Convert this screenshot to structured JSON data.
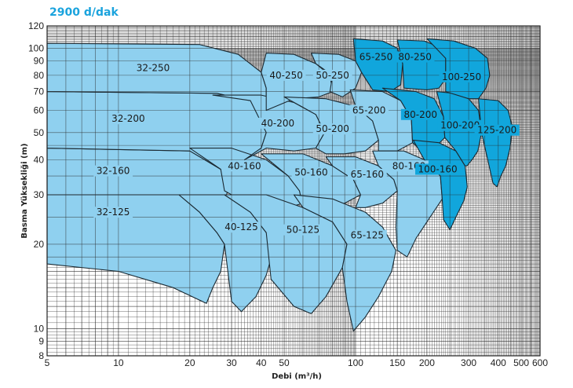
{
  "chart_data": {
    "type": "area",
    "title": "2900 d/dak",
    "xlabel": "Debi (m³/h)",
    "ylabel": "Basma Yüksekliği (m)",
    "x_scale": "log",
    "y_scale": "log",
    "xlim": [
      5,
      600
    ],
    "ylim": [
      8,
      120
    ],
    "x_ticks": [
      5,
      10,
      20,
      30,
      40,
      50,
      100,
      150,
      200,
      300,
      400,
      500,
      600
    ],
    "x_tick_labels": [
      "5",
      "10",
      "20",
      "30",
      "40",
      "50",
      "100",
      "150",
      "200",
      "300",
      "400",
      "500",
      "600"
    ],
    "y_ticks": [
      8,
      9,
      10,
      20,
      30,
      40,
      50,
      60,
      70,
      80,
      90,
      100,
      120
    ],
    "y_tick_labels": [
      "8",
      "9",
      "10",
      "20",
      "30",
      "40",
      "50",
      "60",
      "70",
      "80",
      "90",
      "100",
      "120"
    ],
    "grid": true,
    "colors": {
      "light_region": "#8fd0ef",
      "dark_region": "#11a6dc",
      "outline": "#1b2a33",
      "title": "#1aa3dd",
      "grid": "#2a2a2a"
    },
    "regions": [
      {
        "label": "32-125",
        "shade": "light",
        "label_at": [
          9.5,
          26
        ],
        "outline": [
          [
            5,
            30
          ],
          [
            18,
            30
          ],
          [
            22,
            26
          ],
          [
            26,
            22
          ],
          [
            28,
            20
          ],
          [
            27,
            16
          ],
          [
            25,
            14
          ],
          [
            23.5,
            12.3
          ],
          [
            17,
            14
          ],
          [
            10,
            16
          ],
          [
            5,
            17
          ]
        ]
      },
      {
        "label": "32-160",
        "shade": "light",
        "label_at": [
          9.5,
          36.5
        ],
        "outline": [
          [
            5,
            44
          ],
          [
            20,
            43
          ],
          [
            27,
            37
          ],
          [
            29,
            31
          ],
          [
            28,
            29
          ],
          [
            18,
            30
          ],
          [
            5,
            30
          ]
        ]
      },
      {
        "label": "32-200",
        "shade": "light",
        "label_at": [
          11,
          56
        ],
        "outline": [
          [
            5,
            70
          ],
          [
            26,
            69
          ],
          [
            36,
            65
          ],
          [
            42,
            59
          ],
          [
            42,
            50
          ],
          [
            40,
            44
          ],
          [
            34,
            40
          ],
          [
            27,
            37
          ],
          [
            20,
            43
          ],
          [
            5,
            44
          ]
        ]
      },
      {
        "label": "32-250",
        "shade": "light",
        "label_at": [
          14,
          85
        ],
        "outline": [
          [
            5,
            104
          ],
          [
            22,
            103
          ],
          [
            32,
            95
          ],
          [
            40,
            82
          ],
          [
            42,
            72
          ],
          [
            42,
            59
          ],
          [
            36,
            65
          ],
          [
            26,
            69
          ],
          [
            5,
            70
          ]
        ]
      },
      {
        "label": "40-125",
        "shade": "light",
        "label_at": [
          33,
          23
        ],
        "outline": [
          [
            15,
            30
          ],
          [
            28,
            30
          ],
          [
            36,
            26
          ],
          [
            42,
            22
          ],
          [
            45,
            19
          ],
          [
            42,
            15.5
          ],
          [
            38,
            13
          ],
          [
            33,
            11.5
          ],
          [
            30,
            12.5
          ],
          [
            28,
            20
          ],
          [
            26,
            22
          ],
          [
            22,
            26
          ],
          [
            18,
            30
          ]
        ]
      },
      {
        "label": "40-160",
        "shade": "light",
        "label_at": [
          34,
          38
        ],
        "outline": [
          [
            20,
            44
          ],
          [
            30,
            44
          ],
          [
            42,
            40
          ],
          [
            52,
            35
          ],
          [
            58,
            31
          ],
          [
            60,
            28
          ],
          [
            52,
            27
          ],
          [
            42,
            27
          ],
          [
            30,
            30
          ],
          [
            28,
            31
          ],
          [
            27,
            37
          ]
        ]
      },
      {
        "label": "40-200",
        "shade": "light",
        "label_at": [
          47,
          54
        ],
        "outline": [
          [
            25,
            68
          ],
          [
            40,
            68
          ],
          [
            55,
            64
          ],
          [
            68,
            58
          ],
          [
            74,
            50
          ],
          [
            68,
            44
          ],
          [
            55,
            43
          ],
          [
            42,
            44
          ],
          [
            34,
            40
          ],
          [
            40,
            44
          ],
          [
            42,
            50
          ],
          [
            36,
            65
          ]
        ]
      },
      {
        "label": "40-250",
        "shade": "light",
        "label_at": [
          51,
          80
        ],
        "outline": [
          [
            42,
            96
          ],
          [
            55,
            95
          ],
          [
            68,
            88
          ],
          [
            78,
            80
          ],
          [
            80,
            70
          ],
          [
            70,
            67
          ],
          [
            55,
            66
          ],
          [
            42,
            60
          ],
          [
            42,
            72
          ],
          [
            40,
            82
          ]
        ]
      },
      {
        "label": "50-125",
        "shade": "light",
        "label_at": [
          60,
          22.5
        ],
        "outline": [
          [
            30,
            30
          ],
          [
            42,
            30
          ],
          [
            60,
            27
          ],
          [
            80,
            24
          ],
          [
            92,
            20
          ],
          [
            88,
            16.5
          ],
          [
            75,
            13
          ],
          [
            65,
            11.3
          ],
          [
            55,
            12
          ],
          [
            44,
            15
          ],
          [
            42,
            22
          ],
          [
            36,
            26
          ],
          [
            28,
            30
          ]
        ]
      },
      {
        "label": "50-160",
        "shade": "light",
        "label_at": [
          65,
          36
        ],
        "outline": [
          [
            40,
            42
          ],
          [
            60,
            42
          ],
          [
            80,
            38
          ],
          [
            98,
            34
          ],
          [
            105,
            30
          ],
          [
            90,
            28
          ],
          [
            75,
            27
          ],
          [
            60,
            27
          ],
          [
            58,
            31
          ],
          [
            52,
            35
          ]
        ]
      },
      {
        "label": "50-200",
        "shade": "light",
        "label_at": [
          80,
          51.5
        ],
        "outline": [
          [
            50,
            67
          ],
          [
            75,
            66
          ],
          [
            100,
            62
          ],
          [
            118,
            55
          ],
          [
            125,
            47
          ],
          [
            110,
            43
          ],
          [
            90,
            42
          ],
          [
            75,
            42
          ],
          [
            68,
            44
          ],
          [
            74,
            50
          ],
          [
            68,
            58
          ]
        ]
      },
      {
        "label": "50-250",
        "shade": "light",
        "label_at": [
          80,
          80
        ],
        "outline": [
          [
            65,
            96
          ],
          [
            85,
            95
          ],
          [
            100,
            90
          ],
          [
            106,
            82
          ],
          [
            100,
            72
          ],
          [
            88,
            67
          ],
          [
            78,
            70
          ],
          [
            80,
            80
          ],
          [
            68,
            88
          ]
        ]
      },
      {
        "label": "65-125",
        "shade": "light",
        "label_at": [
          112,
          21.5
        ],
        "outline": [
          [
            55,
            30
          ],
          [
            80,
            29
          ],
          [
            110,
            26
          ],
          [
            130,
            23
          ],
          [
            148,
            19
          ],
          [
            142,
            16
          ],
          [
            125,
            13
          ],
          [
            110,
            11
          ],
          [
            98,
            9.8
          ],
          [
            92,
            12.5
          ],
          [
            88,
            16.5
          ],
          [
            92,
            20
          ],
          [
            80,
            24
          ],
          [
            60,
            27
          ]
        ]
      },
      {
        "label": "65-160",
        "shade": "light",
        "label_at": [
          112,
          35.5
        ],
        "outline": [
          [
            75,
            41
          ],
          [
            100,
            41
          ],
          [
            125,
            38
          ],
          [
            145,
            34
          ],
          [
            150,
            31
          ],
          [
            130,
            28
          ],
          [
            110,
            27
          ],
          [
            100,
            27
          ],
          [
            105,
            30
          ],
          [
            98,
            34
          ],
          [
            80,
            38
          ]
        ]
      },
      {
        "label": "65-200",
        "shade": "light",
        "label_at": [
          114,
          60
        ],
        "outline": [
          [
            95,
            71
          ],
          [
            130,
            70
          ],
          [
            155,
            65
          ],
          [
            172,
            56
          ],
          [
            174,
            46
          ],
          [
            150,
            43
          ],
          [
            125,
            43
          ],
          [
            125,
            47
          ],
          [
            118,
            55
          ],
          [
            100,
            62
          ]
        ]
      },
      {
        "label": "65-250",
        "shade": "dark",
        "label_at": [
          122,
          93
        ],
        "outline": [
          [
            98,
            108
          ],
          [
            130,
            106
          ],
          [
            150,
            100
          ],
          [
            158,
            88
          ],
          [
            155,
            74
          ],
          [
            140,
            70
          ],
          [
            118,
            71
          ],
          [
            106,
            82
          ],
          [
            100,
            90
          ]
        ]
      },
      {
        "label": "80-160",
        "shade": "light",
        "label_at": [
          168,
          38
        ],
        "outline": [
          [
            118,
            43
          ],
          [
            160,
            43
          ],
          [
            195,
            40
          ],
          [
            228,
            35
          ],
          [
            232,
            29
          ],
          [
            200,
            24
          ],
          [
            180,
            21
          ],
          [
            165,
            18
          ],
          [
            150,
            19
          ],
          [
            148,
            23
          ],
          [
            150,
            31
          ],
          [
            145,
            34
          ],
          [
            125,
            38
          ]
        ]
      },
      {
        "label": "80-200",
        "shade": "dark",
        "label_at": [
          188,
          58
        ],
        "outline": [
          [
            130,
            72
          ],
          [
            180,
            70
          ],
          [
            215,
            66
          ],
          [
            235,
            57
          ],
          [
            238,
            48
          ],
          [
            215,
            44
          ],
          [
            190,
            43
          ],
          [
            174,
            46
          ],
          [
            172,
            56
          ],
          [
            155,
            65
          ]
        ]
      },
      {
        "label": "80-250",
        "shade": "dark",
        "label_at": [
          178,
          93
        ],
        "outline": [
          [
            150,
            107
          ],
          [
            195,
            106
          ],
          [
            225,
            101
          ],
          [
            240,
            92
          ],
          [
            240,
            78
          ],
          [
            225,
            72
          ],
          [
            200,
            71
          ],
          [
            160,
            72
          ],
          [
            158,
            88
          ]
        ]
      },
      {
        "label": "100-160",
        "shade": "dark",
        "label_at": [
          222,
          37
        ],
        "outline": [
          [
            175,
            47
          ],
          [
            225,
            46
          ],
          [
            265,
            43
          ],
          [
            290,
            38
          ],
          [
            296,
            32
          ],
          [
            286,
            28.5
          ],
          [
            268,
            25.5
          ],
          [
            250,
            22.5
          ],
          [
            235,
            24.5
          ],
          [
            232,
            29
          ],
          [
            228,
            35
          ],
          [
            195,
            40
          ]
        ]
      },
      {
        "label": "100-200",
        "shade": "dark",
        "label_at": [
          276,
          53
        ],
        "outline": [
          [
            220,
            70
          ],
          [
            260,
            69
          ],
          [
            300,
            66
          ],
          [
            330,
            60
          ],
          [
            340,
            50
          ],
          [
            328,
            43
          ],
          [
            310,
            40
          ],
          [
            295,
            38
          ],
          [
            290,
            38
          ],
          [
            265,
            43
          ],
          [
            238,
            48
          ],
          [
            235,
            57
          ]
        ]
      },
      {
        "label": "100-250",
        "shade": "dark",
        "label_at": [
          280,
          79
        ],
        "outline": [
          [
            200,
            108
          ],
          [
            260,
            106
          ],
          [
            320,
            100
          ],
          [
            360,
            92
          ],
          [
            368,
            80
          ],
          [
            355,
            72
          ],
          [
            330,
            66
          ],
          [
            300,
            66
          ],
          [
            240,
            70
          ],
          [
            240,
            92
          ]
        ]
      },
      {
        "label": "125-200",
        "shade": "dark",
        "label_at": [
          395,
          51
        ],
        "outline": [
          [
            330,
            66
          ],
          [
            400,
            65
          ],
          [
            440,
            60
          ],
          [
            460,
            52
          ],
          [
            448,
            44
          ],
          [
            430,
            38
          ],
          [
            410,
            35
          ],
          [
            395,
            32
          ],
          [
            380,
            33
          ],
          [
            340,
            50
          ]
        ]
      }
    ]
  }
}
